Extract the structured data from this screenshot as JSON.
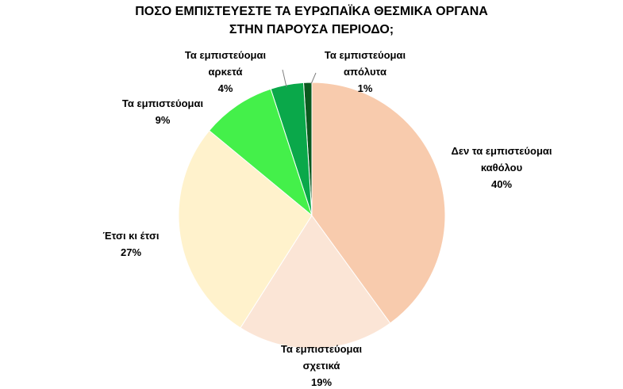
{
  "chart_data": {
    "type": "pie",
    "title": [
      "ΠΟΣΟ ΕΜΠΙΣΤΕΥΕΣΤΕ ΤΑ ΕΥΡΩΠΑΪΚΑ ΘΕΣΜΙΚΑ ΟΡΓΑΝΑ",
      "ΣΤΗΝ ΠΑΡΟΥΣΑ ΠΕΡΙΟΔΟ;"
    ],
    "categories": [
      "Δεν τα εμπιστεύομαι καθόλου",
      "Τα εμπιστεύομαι σχετικά",
      "Έτσι κι έτσι",
      "Τα εμπιστεύομαι",
      "Τα εμπιστεύομαι αρκετά",
      "Τα εμπιστεύομαι απόλυτα"
    ],
    "values": [
      40,
      19,
      27,
      9,
      4,
      1
    ],
    "value_labels": [
      "40%",
      "19%",
      "27%",
      "9%",
      "4%",
      "1%"
    ],
    "colors": [
      "#F8CBAD",
      "#FBE5D6",
      "#FFF2CC",
      "#44F04A",
      "#0AA84A",
      "#0B5A1F"
    ]
  }
}
